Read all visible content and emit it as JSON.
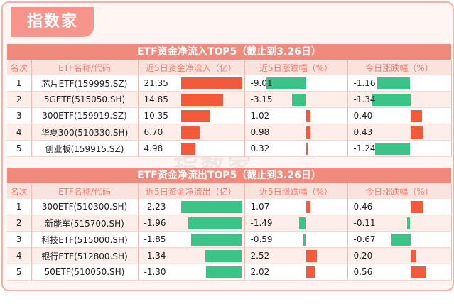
{
  "brand": {
    "logo_text": "指数家",
    "watermark": "指数家"
  },
  "headers": [
    "名次",
    "ETF名称/代码",
    "近5日资金净流入（亿）",
    "近5日涨跌幅（%）",
    "今日涨跌幅（%）"
  ],
  "headers_out": [
    "名次",
    "ETF名称/代码",
    "近5日资金净流出（亿）",
    "近5日涨跌幅（%）",
    "今日涨跌幅（%）"
  ],
  "colors": {
    "positive": "#f25a3b",
    "negative": "#3cc488",
    "accent": "#f08a7d"
  },
  "chart_data": [
    {
      "type": "table",
      "title": "ETF资金净流入TOP5（截止到3.26日）",
      "rows": [
        {
          "rank": "1",
          "name": "芯片ETF(159995.SZ)",
          "flow": "21.35",
          "ret5": "-9.01",
          "today": "-1.16"
        },
        {
          "rank": "2",
          "name": "5GETF(515050.SH)",
          "flow": "14.85",
          "ret5": "-3.15",
          "today": "-1.34"
        },
        {
          "rank": "3",
          "name": "300ETF(159919.SZ)",
          "flow": "10.35",
          "ret5": "1.02",
          "today": "0.40"
        },
        {
          "rank": "4",
          "name": "华夏300(510330.SH)",
          "flow": "6.70",
          "ret5": "0.98",
          "today": "0.43"
        },
        {
          "rank": "5",
          "name": "创业板(159915.SZ)",
          "flow": "4.98",
          "ret5": "0.32",
          "today": "-1.24"
        }
      ]
    },
    {
      "type": "table",
      "title": "ETF资金净流出TOP5（截止到3.26日）",
      "rows": [
        {
          "rank": "1",
          "name": "300ETF(510300.SH)",
          "flow": "-2.23",
          "ret5": "1.07",
          "today": "0.46"
        },
        {
          "rank": "2",
          "name": "新能车(515700.SH)",
          "flow": "-1.96",
          "ret5": "-1.49",
          "today": "-0.11"
        },
        {
          "rank": "3",
          "name": "科技ETF(515000.SH)",
          "flow": "-1.85",
          "ret5": "-0.59",
          "today": "-0.67"
        },
        {
          "rank": "4",
          "name": "银行ETF(512800.SH)",
          "flow": "-1.34",
          "ret5": "2.52",
          "today": "0.20"
        },
        {
          "rank": "5",
          "name": "50ETF(510050.SH)",
          "flow": "-1.30",
          "ret5": "2.02",
          "today": "0.56"
        }
      ]
    }
  ]
}
